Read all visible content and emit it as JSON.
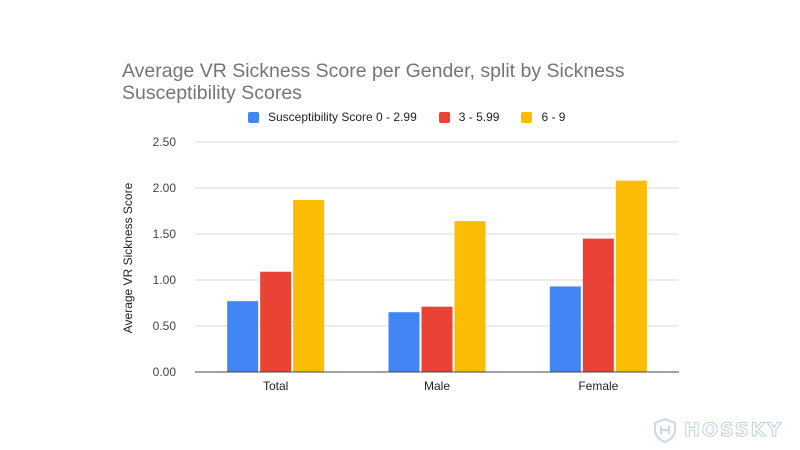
{
  "chart_data": {
    "type": "bar",
    "title": "Average VR Sickness Score per Gender, split by Sickness Susceptibility Scores",
    "xlabel": "",
    "ylabel": "Average VR Sickness Score",
    "categories": [
      "Total",
      "Male",
      "Female"
    ],
    "series": [
      {
        "name": "Susceptibility Score 0 - 2.99",
        "color": "#4285f4",
        "values": [
          0.77,
          0.65,
          0.93
        ]
      },
      {
        "name": "3 - 5.99",
        "color": "#ea4335",
        "values": [
          1.09,
          0.71,
          1.45
        ]
      },
      {
        "name": "6 - 9",
        "color": "#fbbc04",
        "values": [
          1.87,
          1.64,
          2.08
        ]
      }
    ],
    "ylim": [
      0,
      2.5
    ],
    "yticks": [
      "0.00",
      "0.50",
      "1.00",
      "1.50",
      "2.00",
      "2.50"
    ],
    "grid": true,
    "legend_position": "top"
  },
  "watermark": {
    "text": "HOSSKY",
    "icon": "shield-logo-icon"
  }
}
